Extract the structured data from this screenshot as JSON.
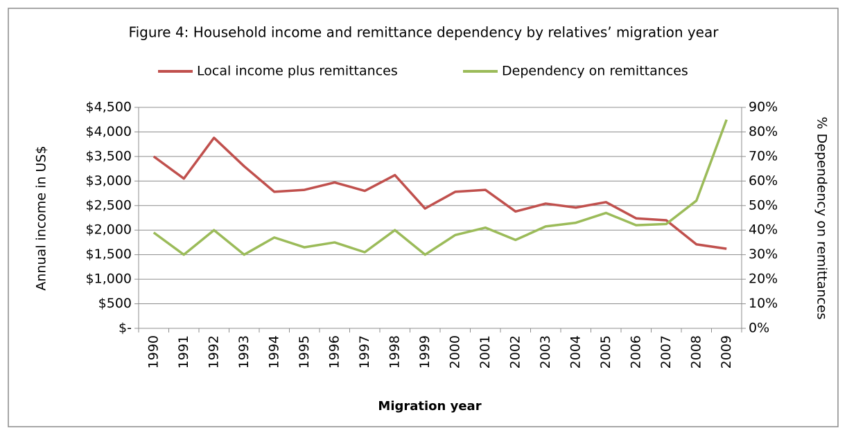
{
  "chart_data": {
    "type": "line",
    "title": "Figure 4: Household income and remittance dependency by relatives’ migration year",
    "xlabel": "Migration year",
    "ylabel": "Annual income in US$",
    "y2label": "% Dependency on remittances",
    "categories": [
      "1990",
      "1991",
      "1992",
      "1993",
      "1994",
      "1995",
      "1996",
      "1997",
      "1998",
      "1999",
      "2000",
      "2001",
      "2002",
      "2003",
      "2004",
      "2005",
      "2006",
      "2007",
      "2008",
      "2009"
    ],
    "series": [
      {
        "name": "Local income plus remittances",
        "color": "#c0504d",
        "values": [
          3500,
          3050,
          3880,
          3300,
          2780,
          2820,
          2970,
          2800,
          3120,
          2440,
          2780,
          2820,
          2380,
          2540,
          2460,
          2570,
          2240,
          2200,
          1710,
          1620
        ]
      },
      {
        "name": "Dependency on remittances",
        "color": "#9bbb59",
        "axis": "y2",
        "values": [
          39,
          30,
          40,
          30,
          37,
          33,
          35,
          31,
          40,
          30,
          38,
          41,
          36,
          41.5,
          43,
          47,
          42,
          42.5,
          52,
          85
        ]
      }
    ],
    "ylim": [
      0,
      4500
    ],
    "yticks": [
      {
        "value": 0,
        "label": "$-"
      },
      {
        "value": 500,
        "label": "$500"
      },
      {
        "value": 1000,
        "label": "$1,000"
      },
      {
        "value": 1500,
        "label": "$1,500"
      },
      {
        "value": 2000,
        "label": "$2,000"
      },
      {
        "value": 2500,
        "label": "$2,500"
      },
      {
        "value": 3000,
        "label": "$3,000"
      },
      {
        "value": 3500,
        "label": "$3,500"
      },
      {
        "value": 4000,
        "label": "$4,000"
      },
      {
        "value": 4500,
        "label": "$4,500"
      }
    ],
    "y2lim": [
      0,
      90
    ],
    "y2ticks": [
      {
        "value": 0,
        "label": "0%"
      },
      {
        "value": 10,
        "label": "10%"
      },
      {
        "value": 20,
        "label": "20%"
      },
      {
        "value": 30,
        "label": "30%"
      },
      {
        "value": 40,
        "label": "40%"
      },
      {
        "value": 50,
        "label": "50%"
      },
      {
        "value": 60,
        "label": "60%"
      },
      {
        "value": 70,
        "label": "70%"
      },
      {
        "value": 80,
        "label": "80%"
      },
      {
        "value": 90,
        "label": "90%"
      }
    ],
    "grid": true,
    "legend": "top"
  }
}
